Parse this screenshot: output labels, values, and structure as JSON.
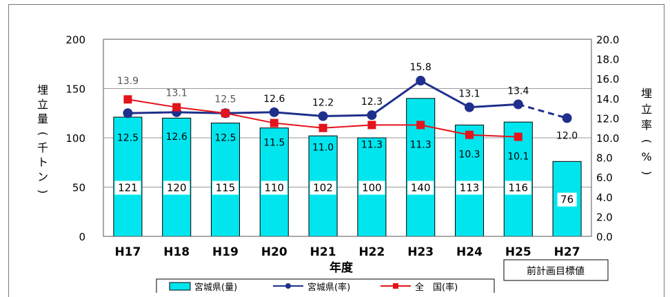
{
  "chart_data": {
    "type": "bar+line",
    "categories": [
      "H17",
      "H18",
      "H19",
      "H20",
      "H21",
      "H22",
      "H23",
      "H24",
      "H25",
      "H27"
    ],
    "xlabel": "年度",
    "ylabel_left": "埋立量(千トン)",
    "ylabel_right": "埋立率(%)",
    "ylim_left": [
      0,
      200
    ],
    "ylim_right": [
      0,
      20
    ],
    "yticks_left": [
      "0",
      "50",
      "100",
      "150",
      "200"
    ],
    "yticks_right": [
      "0.0",
      "2.0",
      "4.0",
      "6.0",
      "8.0",
      "10.0",
      "12.0",
      "14.0",
      "16.0",
      "18.0",
      "20.0"
    ],
    "grid": true,
    "legend_position": "bottom",
    "series": [
      {
        "name": "宮城県(量)",
        "type": "bar",
        "axis": "left",
        "color": "#00e5ee",
        "values": [
          121,
          120,
          115,
          110,
          102,
          100,
          140,
          113,
          116,
          76
        ],
        "labels": [
          "121",
          "120",
          "115",
          "110",
          "102",
          "100",
          "140",
          "113",
          "116",
          "76"
        ]
      },
      {
        "name": "宮城県(率)",
        "type": "line",
        "axis": "right",
        "color": "#1f2f8c",
        "values": [
          12.5,
          12.6,
          12.5,
          12.6,
          12.2,
          12.3,
          15.8,
          13.1,
          13.4,
          12.0
        ],
        "labels": [
          "12.5",
          "12.6",
          "12.5",
          "12.6",
          "12.2",
          "12.3",
          "15.8",
          "13.1",
          "13.4",
          "12.0"
        ],
        "dashed_last_segment": true
      },
      {
        "name": "全　国(率)",
        "type": "line",
        "axis": "right",
        "color": "#e3141b",
        "values": [
          13.9,
          13.1,
          12.5,
          11.5,
          11.0,
          11.3,
          11.3,
          10.3,
          10.1,
          null
        ],
        "labels": [
          "13.9",
          "13.1",
          "12.5",
          "11.5",
          "11.0",
          "11.3",
          "11.3",
          "10.3",
          "10.1",
          null
        ]
      }
    ],
    "annotation": "前計画目標値"
  }
}
